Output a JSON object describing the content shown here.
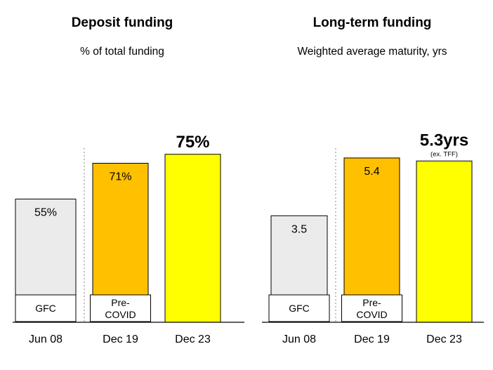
{
  "chart_data": [
    {
      "type": "bar",
      "title": "Deposit funding",
      "subtitle": "% of total funding",
      "categories": [
        "Jun 08",
        "Dec 19",
        "Dec 23"
      ],
      "values": [
        55,
        71,
        75
      ],
      "value_labels": [
        "55%",
        "71%",
        "75%"
      ],
      "highlight_label": "75%",
      "highlight_note": "",
      "period_tags": [
        "GFC",
        "Pre-\nCOVID",
        ""
      ],
      "ylim": [
        0,
        100
      ],
      "colors": [
        "#ebebeb",
        "#ffc000",
        "#ffff00"
      ],
      "divider_after_index": 0
    },
    {
      "type": "bar",
      "title": "Long-term funding",
      "subtitle": "Weighted average maturity, yrs",
      "categories": [
        "Jun 08",
        "Dec 19",
        "Dec 23"
      ],
      "values": [
        3.5,
        5.4,
        5.3
      ],
      "value_labels": [
        "3.5",
        "5.4",
        "5.3yrs"
      ],
      "highlight_label": "5.3yrs",
      "highlight_note": "(ex. TFF)",
      "period_tags": [
        "GFC",
        "Pre-\nCOVID",
        ""
      ],
      "ylim": [
        0,
        7.36
      ],
      "colors": [
        "#ebebeb",
        "#ffc000",
        "#ffff00"
      ],
      "divider_after_index": 0
    }
  ]
}
